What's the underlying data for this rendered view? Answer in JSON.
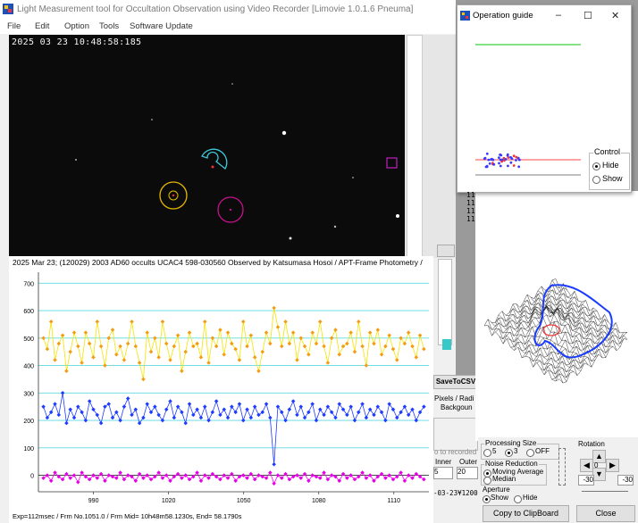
{
  "main_window": {
    "title": "Light Measurement tool for Occultation Observation using Video Recorder [Limovie 1.0.1.6 Pneuma]",
    "menu": [
      "File",
      "Edit",
      "Option",
      "Tools",
      "Software Update"
    ],
    "timestamp": "2025 03 23 10:48:58:185"
  },
  "chart": {
    "title": "2025 Mar 23; (120029) 2003 AD60 occults UCAC4 598-030560 Observed by Katsumasa Hosoi / APT-Frame Photometry /",
    "footer": "Exp=112msec / Frm No.1051.0 / Frm Mid= 10h48m58.1230s,  End= 58.1790s"
  },
  "chart_data": {
    "type": "line",
    "xlim": [
      968,
      1124
    ],
    "ylim": [
      -60,
      740
    ],
    "x_ticks": [
      990,
      1020,
      1050,
      1080,
      1110
    ],
    "y_ticks": [
      0,
      100,
      200,
      300,
      400,
      500,
      600,
      700
    ],
    "grid": true,
    "series": [
      {
        "color": "#f5e400",
        "marker_color": "#f39c12",
        "values": [
          500,
          460,
          560,
          420,
          480,
          510,
          380,
          450,
          520,
          470,
          410,
          520,
          480,
          430,
          560,
          470,
          400,
          500,
          530,
          440,
          470,
          420,
          480,
          560,
          470,
          410,
          350,
          520,
          450,
          500,
          430,
          560,
          480,
          420,
          470,
          510,
          380,
          450,
          520,
          470,
          480,
          430,
          560,
          410,
          500,
          470,
          530,
          440,
          520,
          480,
          460,
          420,
          560,
          470,
          510,
          430,
          380,
          450,
          520,
          480,
          610,
          540,
          470,
          560,
          480,
          520,
          420,
          500,
          470,
          440,
          520,
          480,
          560,
          470,
          410,
          500,
          530,
          440,
          470,
          480,
          520,
          450,
          560,
          470,
          400,
          520,
          480,
          530,
          440,
          470,
          510,
          460,
          420,
          500,
          480,
          520,
          470,
          430,
          510,
          460
        ]
      },
      {
        "color": "#1e3cff",
        "marker_color": "#1e3cff",
        "values": [
          250,
          210,
          230,
          260,
          220,
          300,
          190,
          240,
          210,
          250,
          230,
          200,
          270,
          240,
          220,
          190,
          250,
          260,
          210,
          230,
          200,
          250,
          280,
          220,
          240,
          190,
          210,
          260,
          230,
          250,
          220,
          200,
          240,
          270,
          210,
          250,
          230,
          190,
          260,
          220,
          240,
          210,
          250,
          200,
          230,
          270,
          220,
          240,
          210,
          250,
          230,
          260,
          200,
          240,
          210,
          250,
          220,
          230,
          260,
          210,
          40,
          250,
          230,
          200,
          240,
          270,
          220,
          250,
          210,
          230,
          260,
          200,
          240,
          220,
          250,
          230,
          210,
          260,
          240,
          220,
          250,
          200,
          230,
          260,
          210,
          240,
          220,
          250,
          230,
          200,
          260,
          240,
          210,
          230,
          250,
          220,
          240,
          200,
          230,
          250
        ]
      },
      {
        "color": "#ff00ff",
        "marker_color": "#e600e6",
        "values": [
          -10,
          0,
          -20,
          10,
          -5,
          -15,
          5,
          -10,
          0,
          -25,
          10,
          -5,
          -15,
          0,
          -10,
          5,
          -20,
          0,
          -5,
          -10,
          10,
          -15,
          0,
          -5,
          -20,
          5,
          -10,
          0,
          -15,
          -5,
          10,
          -10,
          0,
          -20,
          -5,
          5,
          -10,
          0,
          -15,
          -5,
          10,
          -20,
          0,
          -10,
          5,
          -5,
          -15,
          0,
          -10,
          5,
          -20,
          -5,
          0,
          -10,
          5,
          -15,
          0,
          -5,
          -10,
          10,
          -30,
          0,
          -10,
          5,
          -15,
          -5,
          0,
          -10,
          5,
          -20,
          0,
          -5,
          -10,
          10,
          -15,
          0,
          -5,
          -20,
          5,
          -10,
          0,
          -15,
          -5,
          10,
          -10,
          0,
          -20,
          -5,
          5,
          -10,
          0,
          -15,
          -5,
          10,
          -20,
          0,
          -10,
          5,
          -5,
          -15
        ]
      }
    ]
  },
  "side_controls": {
    "csv_button": "SaveToCSV",
    "pixels_label": "Pixels / Radi",
    "background_label": "Backgoun",
    "inner_label": "Inner",
    "outer_label": "Outer",
    "inner_value": "5",
    "outer_value": "20",
    "saved_to_label": "o to recorded",
    "date_fragment": "-03-23¥1200"
  },
  "operation_guide": {
    "title": "Operation guide",
    "control_label": "Control",
    "hide_label": "Hide",
    "show_label": "Show",
    "digits": [
      "11",
      "11",
      "11",
      "11",
      "11",
      "11",
      "11"
    ]
  },
  "bottom_panel": {
    "processing_size_label": "Processing Size",
    "ps_options": [
      "5",
      "3",
      "OFF"
    ],
    "noise_label": "Noise Reduction",
    "nr_options": [
      "Moving Average",
      "Median"
    ],
    "aperture_label": "Aperture",
    "ap_options": [
      "Show",
      "Hide"
    ],
    "rotation_label": "Rotation",
    "rot_left": "-30",
    "rot_right": "-30",
    "rot_center": "0",
    "copy_button": "Copy to ClipBoard",
    "close_button": "Close"
  },
  "colors": {
    "chart_gridline": "#5fd9e0",
    "yellow_series": "#f5e400",
    "blue_series": "#1e3cff",
    "magenta_series": "#ff00ff"
  }
}
